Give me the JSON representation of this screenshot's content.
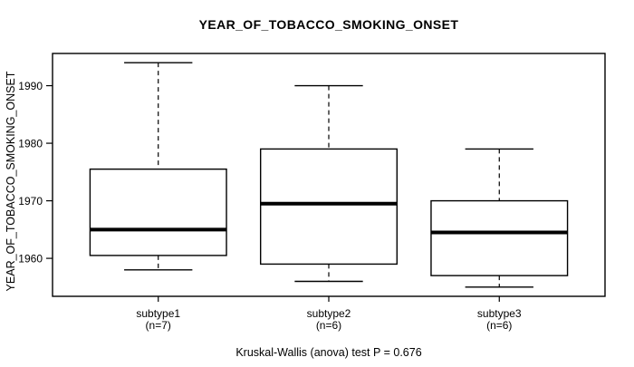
{
  "chart_data": {
    "type": "boxplot",
    "title": "YEAR_OF_TOBACCO_SMOKING_ONSET",
    "ylabel": "YEAR_OF_TOBACCO_SMOKING_ONSET",
    "footer": "Kruskal-Wallis (anova) test P = 0.676",
    "stat_test": {
      "name": "Kruskal-Wallis (anova) test",
      "p_value": 0.676
    },
    "yticks": [
      1960,
      1970,
      1980,
      1990
    ],
    "ylim": [
      1953.4,
      1995.6
    ],
    "grid": false,
    "legend_position": "none",
    "groups": [
      {
        "label": "subtype1",
        "sublabel": "(n=7)",
        "n": 7,
        "whisker_low": 1958,
        "q1": 1960.5,
        "median": 1965,
        "q3": 1975.5,
        "whisker_high": 1994
      },
      {
        "label": "subtype2",
        "sublabel": "(n=6)",
        "n": 6,
        "whisker_low": 1956,
        "q1": 1959,
        "median": 1969.5,
        "q3": 1979,
        "whisker_high": 1990
      },
      {
        "label": "subtype3",
        "sublabel": "(n=6)",
        "n": 6,
        "whisker_low": 1955,
        "q1": 1957,
        "median": 1964.5,
        "q3": 1970,
        "whisker_high": 1979
      }
    ],
    "colors": {
      "line": "#000000",
      "box_fill": "#ffffff",
      "median": "#000000",
      "background": "#ffffff",
      "text": "#000000"
    }
  }
}
